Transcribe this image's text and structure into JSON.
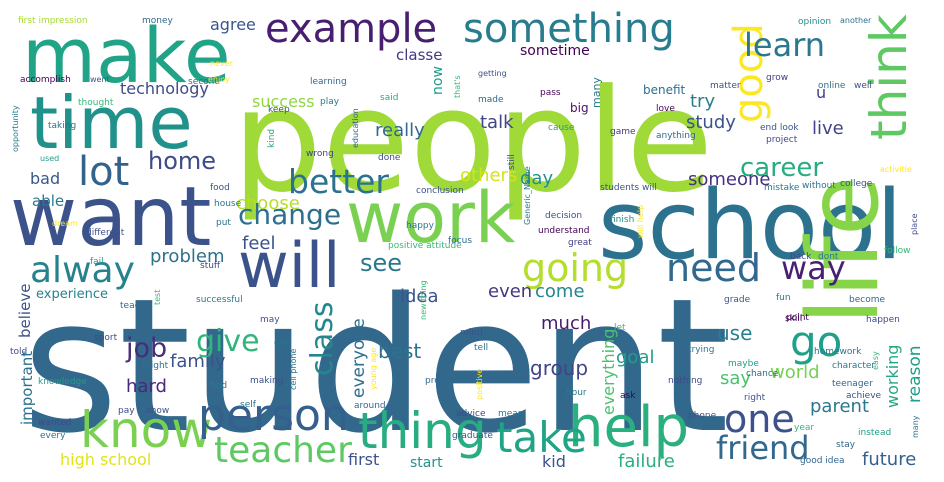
{
  "wordcloud": {
    "words": [
      {
        "text": "student",
        "color": "#33688d"
      },
      {
        "text": "people",
        "color": "#a0da39"
      },
      {
        "text": "school",
        "color": "#2c728e"
      },
      {
        "text": "work",
        "color": "#7ad151"
      },
      {
        "text": "want",
        "color": "#3b528b"
      },
      {
        "text": "life",
        "color": "#86d549"
      },
      {
        "text": "make",
        "color": "#20a386"
      },
      {
        "text": "time",
        "color": "#21918c"
      },
      {
        "text": "will",
        "color": "#3b528b"
      },
      {
        "text": "example",
        "color": "#481f70"
      },
      {
        "text": "something",
        "color": "#287c8e"
      },
      {
        "text": "think",
        "color": "#5ec962"
      },
      {
        "text": "know",
        "color": "#7ad151"
      },
      {
        "text": "help",
        "color": "#2ab07f"
      },
      {
        "text": "thing",
        "color": "#27ad81"
      },
      {
        "text": "person",
        "color": "#355f8d"
      },
      {
        "text": "take",
        "color": "#20a486"
      },
      {
        "text": "teacher",
        "color": "#5ec962"
      },
      {
        "text": "going",
        "color": "#b4de2c"
      },
      {
        "text": "need",
        "color": "#31688e"
      },
      {
        "text": "better",
        "color": "#2c728e"
      },
      {
        "text": "lot",
        "color": "#33638d"
      },
      {
        "text": "alway",
        "color": "#26828e"
      },
      {
        "text": "good",
        "color": "#fde725"
      },
      {
        "text": "learn",
        "color": "#2a788e"
      },
      {
        "text": "one",
        "color": "#3b528b"
      },
      {
        "text": "go",
        "color": "#1fa088"
      },
      {
        "text": "way",
        "color": "#482173"
      },
      {
        "text": "friend",
        "color": "#31688e"
      },
      {
        "text": "change",
        "color": "#2d708e"
      },
      {
        "text": "career",
        "color": "#27ad81"
      },
      {
        "text": "home",
        "color": "#3e4a89"
      },
      {
        "text": "class",
        "color": "#24878e"
      },
      {
        "text": "job",
        "color": "#472d7b"
      },
      {
        "text": "give",
        "color": "#31b57b"
      },
      {
        "text": "see",
        "color": "#2a788e"
      },
      {
        "text": "success",
        "color": "#90d743"
      },
      {
        "text": "technology",
        "color": "#3e4a89"
      },
      {
        "text": "try",
        "color": "#277f8e"
      },
      {
        "text": "really",
        "color": "#31688e"
      },
      {
        "text": "talk",
        "color": "#414487"
      },
      {
        "text": "study",
        "color": "#3b528b"
      },
      {
        "text": "live",
        "color": "#404688"
      },
      {
        "text": "someone",
        "color": "#46327e"
      },
      {
        "text": "others",
        "color": "#d8e219"
      },
      {
        "text": "day",
        "color": "#21918c"
      },
      {
        "text": "choose",
        "color": "#b5de2b"
      },
      {
        "text": "feel",
        "color": "#3b528b"
      },
      {
        "text": "problem",
        "color": "#2c728e"
      },
      {
        "text": "family",
        "color": "#3b528b"
      },
      {
        "text": "hard",
        "color": "#482878"
      },
      {
        "text": "everyone",
        "color": "#2e6e8e"
      },
      {
        "text": "best",
        "color": "#2c728e"
      },
      {
        "text": "group",
        "color": "#414487"
      },
      {
        "text": "goal",
        "color": "#1f9e89"
      },
      {
        "text": "everything",
        "color": "#4ac16d"
      },
      {
        "text": "much",
        "color": "#481b6d"
      },
      {
        "text": "idea",
        "color": "#3b528b"
      },
      {
        "text": "even",
        "color": "#453781"
      },
      {
        "text": "come",
        "color": "#25848e"
      },
      {
        "text": "use",
        "color": "#277f8e"
      },
      {
        "text": "say",
        "color": "#4ac16d"
      },
      {
        "text": "world",
        "color": "#75d054"
      },
      {
        "text": "parent",
        "color": "#2a788e"
      },
      {
        "text": "reason",
        "color": "#1f9e89"
      },
      {
        "text": "working",
        "color": "#22a884"
      },
      {
        "text": "future",
        "color": "#355f8d"
      },
      {
        "text": "failure",
        "color": "#29af7f"
      },
      {
        "text": "kid",
        "color": "#3b528b"
      },
      {
        "text": "high school",
        "color": "#e2e418"
      },
      {
        "text": "first",
        "color": "#3b528b"
      },
      {
        "text": "start",
        "color": "#21918c"
      },
      {
        "text": "important",
        "color": "#2d708e"
      },
      {
        "text": "believe",
        "color": "#3b528b"
      },
      {
        "text": "experience",
        "color": "#26828e"
      },
      {
        "text": "bad",
        "color": "#38588c"
      },
      {
        "text": "able",
        "color": "#2a788e"
      },
      {
        "text": "agree",
        "color": "#39568c"
      },
      {
        "text": "classe",
        "color": "#453781"
      },
      {
        "text": "sometime",
        "color": "#440154"
      },
      {
        "text": "now",
        "color": "#1e9b8a"
      },
      {
        "text": "benefit",
        "color": "#2d708e"
      },
      {
        "text": "u",
        "color": "#433e85"
      },
      {
        "text": "first impression",
        "color": "#a8db34"
      },
      {
        "text": "money",
        "color": "#31688e"
      },
      {
        "text": "never",
        "color": "#fde725"
      },
      {
        "text": "accomplish",
        "color": "#440154"
      },
      {
        "text": "thought",
        "color": "#35b779"
      },
      {
        "text": "taking",
        "color": "#2d708e"
      },
      {
        "text": "opportunity",
        "color": "#2a788e"
      },
      {
        "text": "went",
        "color": "#39568c"
      },
      {
        "text": "second",
        "color": "#2c728e"
      },
      {
        "text": "learning",
        "color": "#31688e"
      },
      {
        "text": "play",
        "color": "#2a788e"
      },
      {
        "text": "getting",
        "color": "#3b528b"
      },
      {
        "text": "pass",
        "color": "#440154"
      },
      {
        "text": "that's",
        "color": "#35b779"
      },
      {
        "text": "said",
        "color": "#27ad81"
      },
      {
        "text": "keep",
        "color": "#39568c"
      },
      {
        "text": "kind",
        "color": "#22a884"
      },
      {
        "text": "education",
        "color": "#355f8d"
      },
      {
        "text": "made",
        "color": "#31688e"
      },
      {
        "text": "big",
        "color": "#471063"
      },
      {
        "text": "many",
        "color": "#2a788e"
      },
      {
        "text": "matter",
        "color": "#3b528b"
      },
      {
        "text": "online",
        "color": "#2c728e"
      },
      {
        "text": "well",
        "color": "#3e4a89"
      },
      {
        "text": "grow",
        "color": "#433e85"
      },
      {
        "text": "opinion",
        "color": "#21918c"
      },
      {
        "text": "another",
        "color": "#2c728e"
      },
      {
        "text": "love",
        "color": "#440154"
      },
      {
        "text": "cause",
        "color": "#20a386"
      },
      {
        "text": "game",
        "color": "#453781"
      },
      {
        "text": "anything",
        "color": "#31688e"
      },
      {
        "text": "end look",
        "color": "#39568c"
      },
      {
        "text": "project",
        "color": "#3e4a89"
      },
      {
        "text": "activitie",
        "color": "#fde725"
      },
      {
        "text": "college",
        "color": "#3b528b"
      },
      {
        "text": "without",
        "color": "#2c728e"
      },
      {
        "text": "mistake",
        "color": "#2a788e"
      },
      {
        "text": "students will",
        "color": "#3b528b"
      },
      {
        "text": "conclusion",
        "color": "#3b528b"
      },
      {
        "text": "Generic_Name",
        "color": "#2a788e"
      },
      {
        "text": "still",
        "color": "#3e4a89"
      },
      {
        "text": "wrong",
        "color": "#433e85"
      },
      {
        "text": "done",
        "color": "#3e4a89"
      },
      {
        "text": "dream",
        "color": "#fde725"
      },
      {
        "text": "food",
        "color": "#3b528b"
      },
      {
        "text": "house",
        "color": "#2a788e"
      },
      {
        "text": "put",
        "color": "#2c728e"
      },
      {
        "text": "used",
        "color": "#1f9e89"
      },
      {
        "text": "different",
        "color": "#3b528b"
      },
      {
        "text": "fail",
        "color": "#1f9e89"
      },
      {
        "text": "stuff",
        "color": "#3e4a89"
      },
      {
        "text": "positive attitude",
        "color": "#35b779"
      },
      {
        "text": "happy",
        "color": "#2a788e"
      },
      {
        "text": "focus",
        "color": "#31688e"
      },
      {
        "text": "decision",
        "color": "#3b528b"
      },
      {
        "text": "understand",
        "color": "#440154"
      },
      {
        "text": "great",
        "color": "#433e85"
      },
      {
        "text": "will help",
        "color": "#fde725"
      },
      {
        "text": "finish",
        "color": "#21918c"
      },
      {
        "text": "back",
        "color": "#3e4a89"
      },
      {
        "text": "dont",
        "color": "#2a788e"
      },
      {
        "text": "place",
        "color": "#3e4a89"
      },
      {
        "text": "follow",
        "color": "#35b779"
      },
      {
        "text": "successful",
        "color": "#2a788e"
      },
      {
        "text": "teach",
        "color": "#31688e"
      },
      {
        "text": "test",
        "color": "#35b779"
      },
      {
        "text": "may",
        "color": "#3b528b"
      },
      {
        "text": "got",
        "color": "#2c728e"
      },
      {
        "text": "sport",
        "color": "#3e4a89"
      },
      {
        "text": "cell phone",
        "color": "#2a788e"
      },
      {
        "text": "young age",
        "color": "#fde725"
      },
      {
        "text": "new thing",
        "color": "#35b779"
      },
      {
        "text": "mind",
        "color": "#3b528b"
      },
      {
        "text": "tell",
        "color": "#2c728e"
      },
      {
        "text": "let",
        "color": "#35b779"
      },
      {
        "text": "trying",
        "color": "#2a788e"
      },
      {
        "text": "maybe",
        "color": "#1f9e89"
      },
      {
        "text": "skill",
        "color": "#440154"
      },
      {
        "text": "grade",
        "color": "#3b528b"
      },
      {
        "text": "fun",
        "color": "#2a788e"
      },
      {
        "text": "point",
        "color": "#440154"
      },
      {
        "text": "become",
        "color": "#31688e"
      },
      {
        "text": "happen",
        "color": "#3e4a89"
      },
      {
        "text": "homework",
        "color": "#2c728e"
      },
      {
        "text": "easy",
        "color": "#35b779"
      },
      {
        "text": "character",
        "color": "#2a788e"
      },
      {
        "text": "teenager",
        "color": "#31688e"
      },
      {
        "text": "achieve",
        "color": "#3b528b"
      },
      {
        "text": "told",
        "color": "#3e4a89"
      },
      {
        "text": "might",
        "color": "#2c728e"
      },
      {
        "text": "knowledge",
        "color": "#1f9e89"
      },
      {
        "text": "find",
        "color": "#2a788e"
      },
      {
        "text": "making",
        "color": "#3b528b"
      },
      {
        "text": "program",
        "color": "#31688e"
      },
      {
        "text": "positive",
        "color": "#fde725"
      },
      {
        "text": "nothing",
        "color": "#3e4a89"
      },
      {
        "text": "hour",
        "color": "#2a788e"
      },
      {
        "text": "ask",
        "color": "#440154"
      },
      {
        "text": "right",
        "color": "#3b528b"
      },
      {
        "text": "chance",
        "color": "#31688e"
      },
      {
        "text": "pay",
        "color": "#3e4a89"
      },
      {
        "text": "self",
        "color": "#2c728e"
      },
      {
        "text": "show",
        "color": "#3b528b"
      },
      {
        "text": "around",
        "color": "#31688e"
      },
      {
        "text": "advice",
        "color": "#3e4a89"
      },
      {
        "text": "mean",
        "color": "#2a788e"
      },
      {
        "text": "phone",
        "color": "#3b528b"
      },
      {
        "text": "year",
        "color": "#35b779"
      },
      {
        "text": "instead",
        "color": "#1f9e89"
      },
      {
        "text": "stay",
        "color": "#31688e"
      },
      {
        "text": "wanted",
        "color": "#3e4a89"
      },
      {
        "text": "every",
        "color": "#2a788e"
      },
      {
        "text": "enjoy",
        "color": "#fde725"
      },
      {
        "text": "graduate",
        "color": "#3b528b"
      },
      {
        "text": "good idea",
        "color": "#31688e"
      },
      {
        "text": "many",
        "color": "#2c728e"
      }
    ]
  }
}
